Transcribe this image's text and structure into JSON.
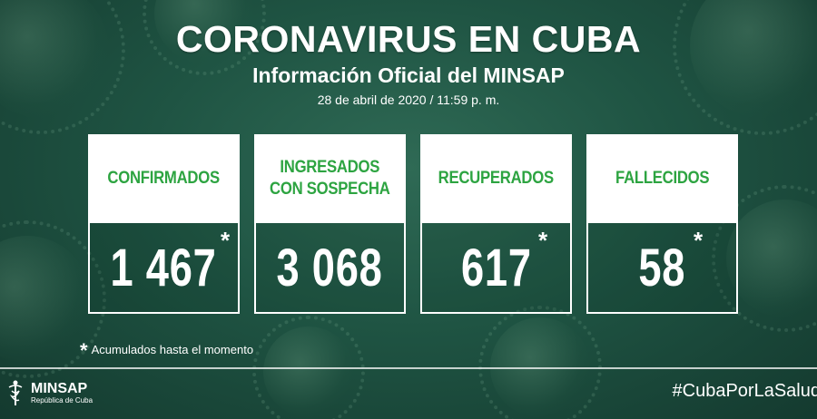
{
  "header": {
    "title": "CORONAVIRUS EN CUBA",
    "subtitle": "Información Oficial del MINSAP",
    "date": "28 de abril de 2020 / 11:59 p. m."
  },
  "cards": [
    {
      "label_lines": [
        "CONFIRMADOS"
      ],
      "value": "1 467",
      "asterisk": "*"
    },
    {
      "label_lines": [
        "INGRESADOS",
        "CON SOSPECHA"
      ],
      "value": "3 068",
      "asterisk": ""
    },
    {
      "label_lines": [
        "RECUPERADOS"
      ],
      "value": "617",
      "asterisk": "*"
    },
    {
      "label_lines": [
        "FALLECIDOS"
      ],
      "value": "58",
      "asterisk": "*"
    }
  ],
  "footnote": {
    "star": "*",
    "text": "Acumulados hasta el momento"
  },
  "footer": {
    "logo_name": "MINSAP",
    "logo_sub": "República de Cuba",
    "hashtag": "#CubaPorLaSalud"
  },
  "colors": {
    "accent_green": "#2da441",
    "background": "#1f5443",
    "card_bg": "#ffffff"
  }
}
